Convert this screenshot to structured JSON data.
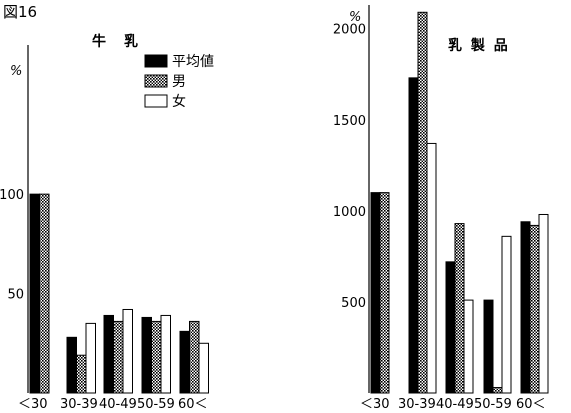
{
  "figure_label": "図16",
  "legend": [
    {
      "key": "avg",
      "label": "平均値",
      "fill": "#000000"
    },
    {
      "key": "male",
      "label": "男",
      "fill": "url(#hatch)"
    },
    {
      "key": "female",
      "label": "女",
      "fill": "#ffffff"
    }
  ],
  "chart_data": [
    {
      "type": "bar",
      "title": "牛　乳",
      "unit": "%",
      "categories": [
        "＜30",
        "30-39",
        "40-49",
        "50-59",
        "60＜"
      ],
      "series": [
        {
          "name": "平均値",
          "values": [
            100,
            28,
            39,
            38,
            31
          ]
        },
        {
          "name": "男",
          "values": [
            100,
            19,
            36,
            36,
            36
          ]
        },
        {
          "name": "女",
          "values": [
            null,
            35,
            42,
            39,
            25
          ]
        }
      ],
      "yticks": [
        {
          "value": 50,
          "label": "50"
        },
        {
          "value": 100,
          "label": "100"
        }
      ],
      "ylim": [
        0,
        175
      ]
    },
    {
      "type": "bar",
      "title": "乳 製 品",
      "unit": "%",
      "categories": [
        "＜30",
        "30-39",
        "40-49",
        "50-59",
        "60＜"
      ],
      "series": [
        {
          "name": "平均値",
          "values": [
            1100,
            1730,
            720,
            510,
            940
          ]
        },
        {
          "name": "男",
          "values": [
            1100,
            2090,
            930,
            30,
            920
          ]
        },
        {
          "name": "女",
          "values": [
            null,
            1370,
            510,
            860,
            980
          ]
        }
      ],
      "yticks": [
        {
          "value": 500,
          "label": "500"
        },
        {
          "value": 1000,
          "label": "1000"
        },
        {
          "value": 1500,
          "label": "1500"
        },
        {
          "value": 2000,
          "label": "2000"
        }
      ],
      "ylim": [
        0,
        2130
      ]
    }
  ]
}
